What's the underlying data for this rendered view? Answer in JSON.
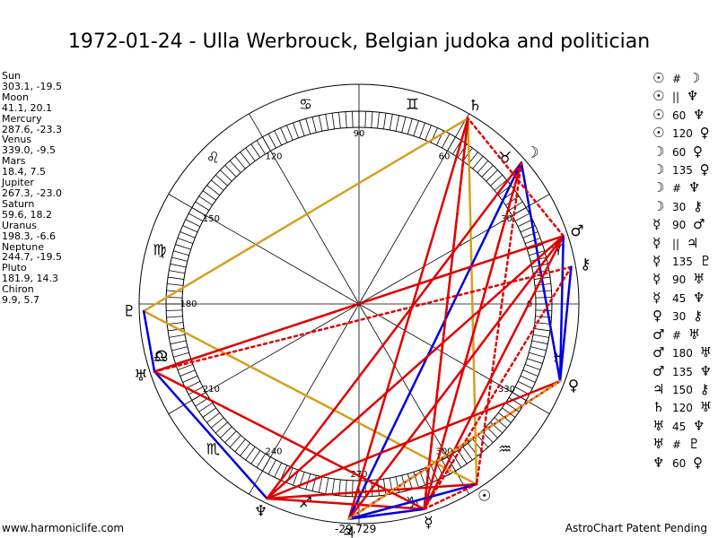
{
  "title": "1972-01-24 - Ulla Werbrouck, Belgian judoka and politician",
  "planets": [
    {
      "name": "Sun",
      "coords": "303.1, -19.5",
      "lon": 303.1,
      "symbol": "☉"
    },
    {
      "name": "Moon",
      "coords": "41.1, 20.1",
      "lon": 41.1,
      "symbol": "☽"
    },
    {
      "name": "Mercury",
      "coords": "287.6, -23.3",
      "lon": 287.6,
      "symbol": "☿"
    },
    {
      "name": "Venus",
      "coords": "339.0, -9.5",
      "lon": 339.0,
      "symbol": "♀"
    },
    {
      "name": "Mars",
      "coords": "18.4, 7.5",
      "lon": 18.4,
      "symbol": "♂"
    },
    {
      "name": "Jupiter",
      "coords": "267.3, -23.0",
      "lon": 267.3,
      "symbol": "♃"
    },
    {
      "name": "Saturn",
      "coords": "59.6, 18.2",
      "lon": 59.6,
      "symbol": "♄"
    },
    {
      "name": "Uranus",
      "coords": "198.3, -6.6",
      "lon": 198.3,
      "symbol": "♅"
    },
    {
      "name": "Neptune",
      "coords": "244.7, -19.5",
      "lon": 244.7,
      "symbol": "♆"
    },
    {
      "name": "Pluto",
      "coords": "181.9, 14.3",
      "lon": 181.9,
      "symbol": "♇"
    },
    {
      "name": "Chiron",
      "coords": "9.9, 5.7",
      "lon": 9.9,
      "symbol": "⚷"
    }
  ],
  "node": {
    "symbol": "☊",
    "lon": 195
  },
  "zodiac": [
    {
      "symbol": "♈",
      "lon": 15
    },
    {
      "symbol": "♉",
      "lon": 45
    },
    {
      "symbol": "♊",
      "lon": 75
    },
    {
      "symbol": "♋",
      "lon": 105
    },
    {
      "symbol": "♌",
      "lon": 135
    },
    {
      "symbol": "♍",
      "lon": 165
    },
    {
      "symbol": "♎",
      "lon": 195
    },
    {
      "symbol": "♏",
      "lon": 225
    },
    {
      "symbol": "♐",
      "lon": 255
    },
    {
      "symbol": "♑",
      "lon": 285
    },
    {
      "symbol": "♒",
      "lon": 315
    },
    {
      "symbol": "♓",
      "lon": 345
    }
  ],
  "degree_labels": [
    {
      "text": "0",
      "lon": 0
    },
    {
      "text": "30",
      "lon": 30
    },
    {
      "text": "60",
      "lon": 60
    },
    {
      "text": "90",
      "lon": 90
    },
    {
      "text": "120",
      "lon": 120
    },
    {
      "text": "150",
      "lon": 150
    },
    {
      "text": "180",
      "lon": 180
    },
    {
      "text": "210",
      "lon": 210
    },
    {
      "text": "240",
      "lon": 240
    },
    {
      "text": "270",
      "lon": 270
    },
    {
      "text": "300",
      "lon": 300
    },
    {
      "text": "330",
      "lon": 330
    }
  ],
  "aspects": [
    {
      "p1": "Sun",
      "p2": "Moon",
      "angle": "",
      "symbol": "#",
      "color": "#e00000",
      "style": "dotted"
    },
    {
      "p1": "Sun",
      "p2": "Neptune",
      "angle": "",
      "symbol": "||",
      "color": "#e00000",
      "style": "solid"
    },
    {
      "p1": "Sun",
      "p2": "Neptune",
      "angle": "60",
      "symbol": "",
      "color": "#0000e0",
      "style": "solid"
    },
    {
      "p1": "Sun",
      "p2": "Venus",
      "angle": "120",
      "symbol": "",
      "color": "#0000e0",
      "style": "solid"
    },
    {
      "p1": "Moon",
      "p2": "Venus",
      "angle": "60",
      "symbol": "",
      "color": "#0000e0",
      "style": "solid"
    },
    {
      "p1": "Moon",
      "p2": "Venus",
      "angle": "135",
      "symbol": "",
      "color": "#e00000",
      "style": "solid"
    },
    {
      "p1": "Moon",
      "p2": "Neptune",
      "angle": "",
      "symbol": "#",
      "color": "#e00000",
      "style": "dotted"
    },
    {
      "p1": "Moon",
      "p2": "Chiron",
      "angle": "30",
      "symbol": "",
      "color": "#0000e0",
      "style": "solid"
    },
    {
      "p1": "Mercury",
      "p2": "Mars",
      "angle": "90",
      "symbol": "",
      "color": "#e00000",
      "style": "solid"
    },
    {
      "p1": "Mercury",
      "p2": "Jupiter",
      "angle": "",
      "symbol": "||",
      "color": "#e00000",
      "style": "solid"
    },
    {
      "p1": "Mercury",
      "p2": "Pluto",
      "angle": "135",
      "symbol": "",
      "color": "#e00000",
      "style": "solid"
    },
    {
      "p1": "Mercury",
      "p2": "Uranus",
      "angle": "90",
      "symbol": "",
      "color": "#e00000",
      "style": "solid"
    },
    {
      "p1": "Mercury",
      "p2": "Neptune",
      "angle": "45",
      "symbol": "",
      "color": "#e00000",
      "style": "solid"
    },
    {
      "p1": "Venus",
      "p2": "Chiron",
      "angle": "30",
      "symbol": "",
      "color": "#0000e0",
      "style": "solid"
    },
    {
      "p1": "Mars",
      "p2": "Uranus",
      "angle": "",
      "symbol": "#",
      "color": "#e00000",
      "style": "dotted"
    },
    {
      "p1": "Mars",
      "p2": "Uranus",
      "angle": "180",
      "symbol": "",
      "color": "#e00000",
      "style": "solid"
    },
    {
      "p1": "Mars",
      "p2": "Neptune",
      "angle": "135",
      "symbol": "",
      "color": "#e00000",
      "style": "solid"
    },
    {
      "p1": "Jupiter",
      "p2": "Chiron",
      "angle": "150",
      "symbol": "",
      "color": "#e00000",
      "style": "solid"
    },
    {
      "p1": "Saturn",
      "p2": "Uranus",
      "angle": "120",
      "symbol": "",
      "color": "#e00000",
      "style": "solid"
    },
    {
      "p1": "Uranus",
      "p2": "Neptune",
      "angle": "45",
      "symbol": "",
      "color": "#e00000",
      "style": "solid"
    },
    {
      "p1": "Uranus",
      "p2": "Pluto",
      "angle": "",
      "symbol": "#",
      "color": "#e00000",
      "style": "dotted"
    },
    {
      "p1": "Neptune",
      "p2": "Venus",
      "angle": "60",
      "symbol": "",
      "color": "#0000e0",
      "style": "solid"
    }
  ],
  "aspect_lines": [
    {
      "a": "Sun",
      "b": "Saturn",
      "color": "#d4a020",
      "style": "solid"
    },
    {
      "a": "Saturn",
      "b": "Pluto",
      "color": "#d4a020",
      "style": "solid"
    },
    {
      "a": "Pluto",
      "b": "Sun",
      "color": "#d4a020",
      "style": "solid"
    },
    {
      "a": "Saturn",
      "b": "Jupiter",
      "color": "#e00000",
      "style": "solid"
    },
    {
      "a": "Saturn",
      "b": "Mercury",
      "color": "#e00000",
      "style": "solid"
    },
    {
      "a": "Moon",
      "b": "Neptune",
      "color": "#e00000",
      "style": "solid"
    },
    {
      "a": "Moon",
      "b": "Mercury",
      "color": "#e00000",
      "style": "solid"
    },
    {
      "a": "Moon",
      "b": "Sun",
      "color": "#e00000",
      "style": "dotted"
    },
    {
      "a": "Moon",
      "b": "Venus",
      "color": "#0000e0",
      "style": "solid"
    },
    {
      "a": "Moon",
      "b": "Jupiter",
      "color": "#0000e0",
      "style": "solid"
    },
    {
      "a": "Mars",
      "b": "Uranus",
      "color": "#e00000",
      "style": "solid"
    },
    {
      "a": "Mars",
      "b": "Mercury",
      "color": "#e00000",
      "style": "solid"
    },
    {
      "a": "Mars",
      "b": "Neptune",
      "color": "#e00000",
      "style": "solid"
    },
    {
      "a": "Mars",
      "b": "Jupiter",
      "color": "#e00000",
      "style": "solid"
    },
    {
      "a": "Mars",
      "b": "Venus",
      "color": "#0000e0",
      "style": "solid"
    },
    {
      "a": "Mars",
      "b": "Saturn",
      "color": "#e00000",
      "style": "dotted"
    },
    {
      "a": "Chiron",
      "b": "Uranus",
      "color": "#e00000",
      "style": "dotted"
    },
    {
      "a": "Chiron",
      "b": "Mercury",
      "color": "#e00000",
      "style": "dotted"
    },
    {
      "a": "Chiron",
      "b": "Venus",
      "color": "#0000e0",
      "style": "solid"
    },
    {
      "a": "Uranus",
      "b": "Neptune",
      "color": "#0000e0",
      "style": "solid"
    },
    {
      "a": "Uranus",
      "b": "Mercury",
      "color": "#e00000",
      "style": "solid"
    },
    {
      "a": "Uranus",
      "b": "Pluto",
      "color": "#0000e0",
      "style": "solid"
    },
    {
      "a": "Neptune",
      "b": "Mercury",
      "color": "#e00000",
      "style": "solid"
    },
    {
      "a": "Neptune",
      "b": "Sun",
      "color": "#e00000",
      "style": "solid"
    },
    {
      "a": "Neptune",
      "b": "Venus",
      "color": "#e00000",
      "style": "solid"
    },
    {
      "a": "Jupiter",
      "b": "Mercury",
      "color": "#0000e0",
      "style": "solid"
    },
    {
      "a": "Jupiter",
      "b": "Venus",
      "color": "#e00000",
      "style": "solid"
    },
    {
      "a": "Jupiter",
      "b": "Sun",
      "color": "#0000e0",
      "style": "solid"
    },
    {
      "a": "Mercury",
      "b": "Moon",
      "color": "#e00000",
      "style": "dotted"
    },
    {
      "a": "Mercury",
      "b": "Sun",
      "color": "#e00000",
      "style": "dotted"
    },
    {
      "a": "Mercury",
      "b": "Saturn",
      "color": "#e00000",
      "style": "dotted"
    },
    {
      "a": "Jupiter",
      "b": "Venus",
      "color": "#d4a020",
      "style": "dotted"
    }
  ],
  "footer": {
    "left": "www.harmoniclife.com",
    "center": "-29,729",
    "right": "AstroChart Patent Pending"
  }
}
